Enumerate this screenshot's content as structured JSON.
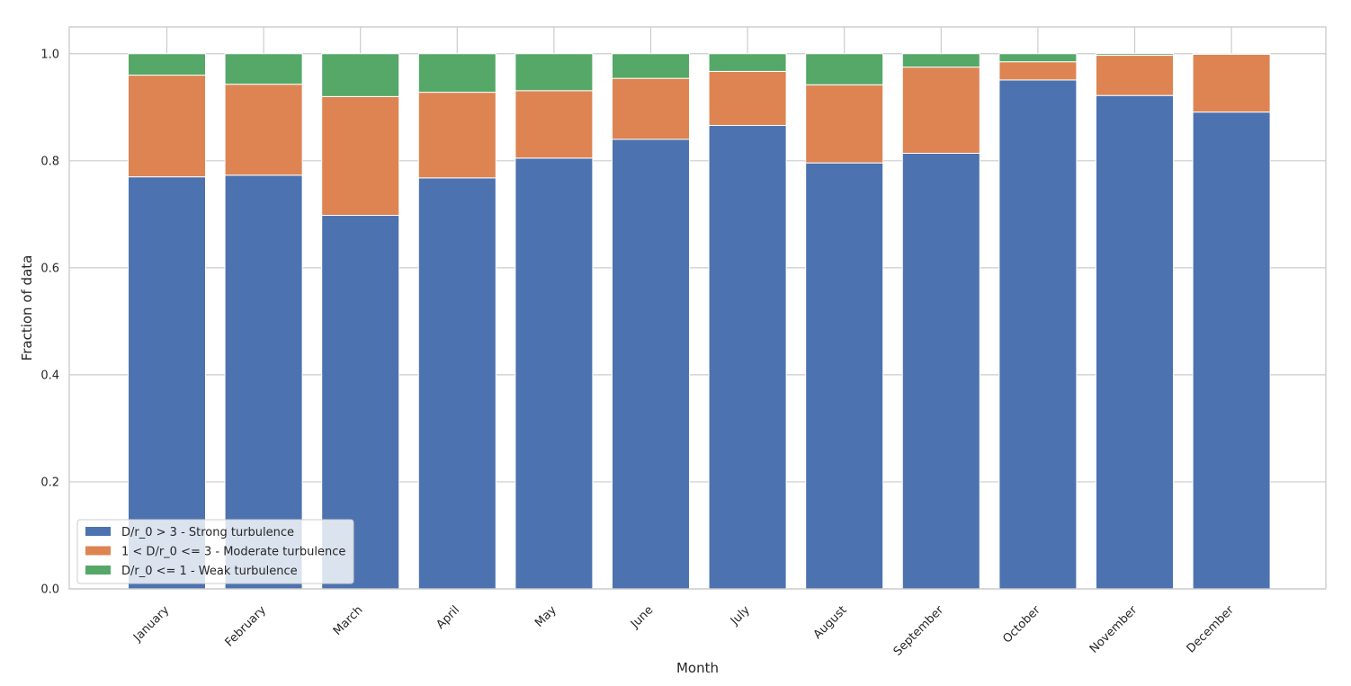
{
  "chart_data": {
    "type": "bar",
    "stacked": true,
    "title": "",
    "xlabel": "Month",
    "ylabel": "Fraction of data",
    "categories": [
      "January",
      "February",
      "March",
      "April",
      "May",
      "June",
      "July",
      "August",
      "September",
      "October",
      "November",
      "December"
    ],
    "series": [
      {
        "name": "D/r_0 > 3 - Strong turbulence",
        "color": "#4c72b0",
        "values": [
          0.77,
          0.773,
          0.698,
          0.768,
          0.805,
          0.84,
          0.866,
          0.796,
          0.814,
          0.951,
          0.922,
          0.891
        ]
      },
      {
        "name": "1 < D/r_0 <= 3 - Moderate turbulence",
        "color": "#dd8452",
        "values": [
          0.19,
          0.17,
          0.222,
          0.16,
          0.126,
          0.114,
          0.101,
          0.146,
          0.161,
          0.034,
          0.075,
          0.108
        ]
      },
      {
        "name": "D/r_0 <= 1 - Weak turbulence",
        "color": "#55a868",
        "values": [
          0.04,
          0.057,
          0.08,
          0.072,
          0.069,
          0.046,
          0.033,
          0.058,
          0.025,
          0.015,
          0.003,
          0.001
        ]
      }
    ],
    "ylim": [
      0,
      1.05
    ],
    "yticks": [
      "0.0",
      "0.2",
      "0.4",
      "0.6",
      "0.8",
      "1.0"
    ],
    "grid": true,
    "legend_position": "lower-left",
    "gridline_color": "#cccccc",
    "axes_edge_color": "#cccccc"
  }
}
